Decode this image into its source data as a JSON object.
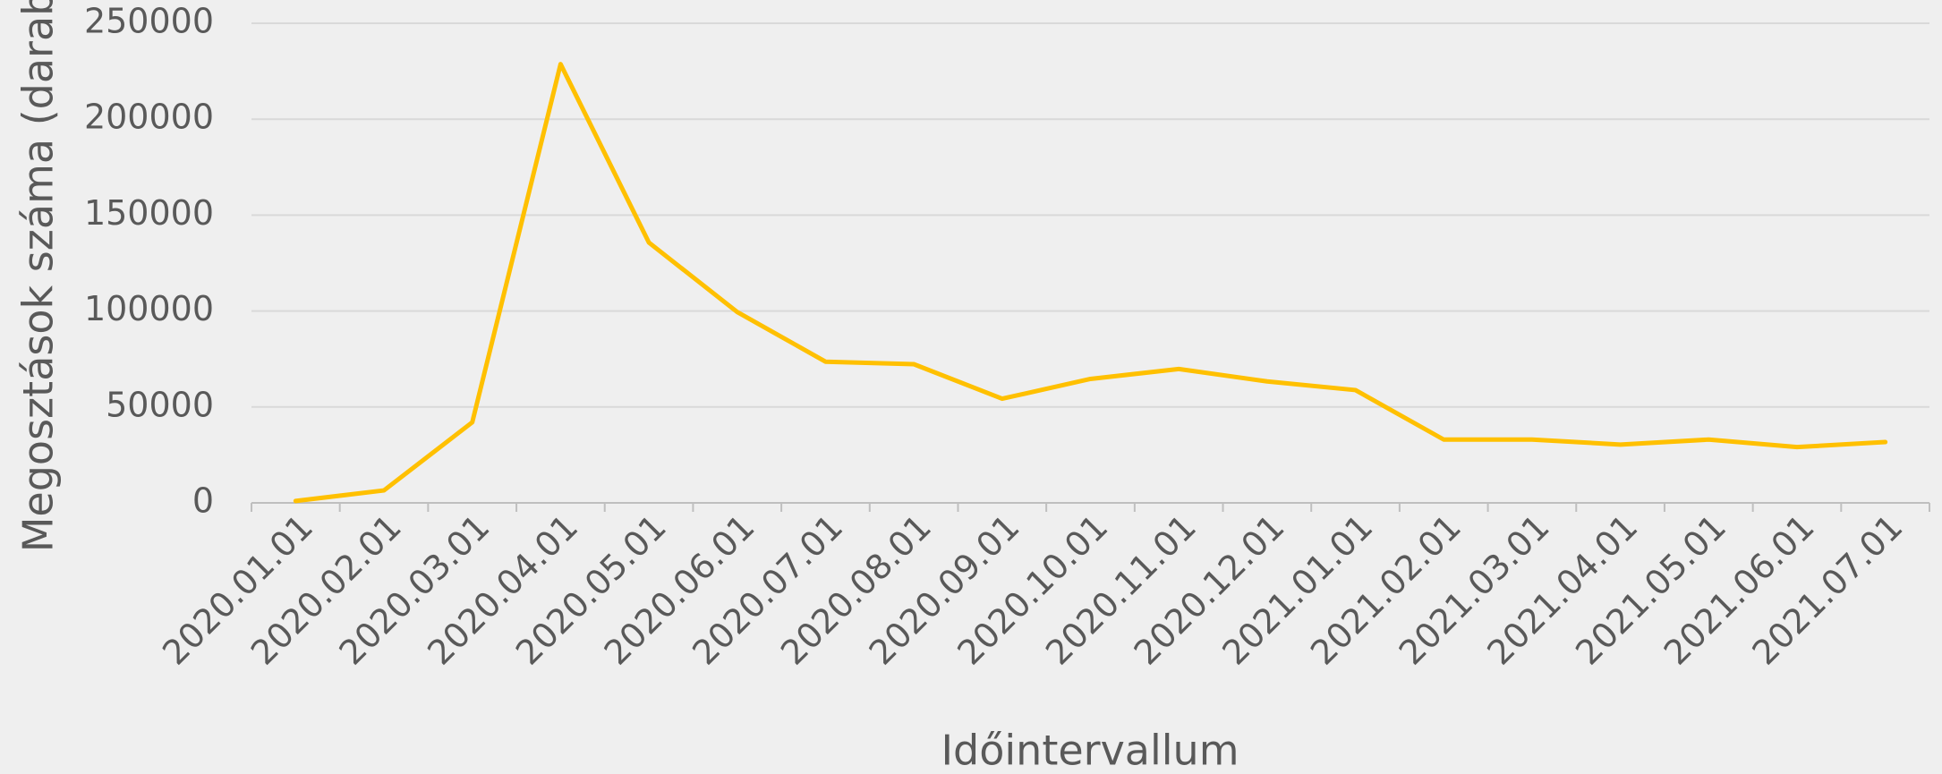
{
  "chart_data": {
    "type": "line",
    "x_label": "Időintervallum",
    "y_label": "Megosztások száma (darab)",
    "categories": [
      "2020.01.01",
      "2020.02.01",
      "2020.03.01",
      "2020.04.01",
      "2020.05.01",
      "2020.06.01",
      "2020.07.01",
      "2020.08.01",
      "2020.09.01",
      "2020.10.01",
      "2020.11.01",
      "2020.12.01",
      "2021.01.01",
      "2021.02.01",
      "2021.03.01",
      "2021.04.01",
      "2021.05.01",
      "2021.06.01",
      "2021.07.01"
    ],
    "values": [
      1000,
      6500,
      42000,
      228700,
      135700,
      99500,
      73600,
      72300,
      54300,
      64600,
      69800,
      63300,
      58800,
      33000,
      33000,
      30400,
      33000,
      29100,
      31700
    ],
    "color": "#ffc000",
    "ylim": [
      0,
      250000
    ],
    "yticks": [
      0,
      50000,
      100000,
      150000,
      200000,
      250000
    ],
    "grid": true
  }
}
